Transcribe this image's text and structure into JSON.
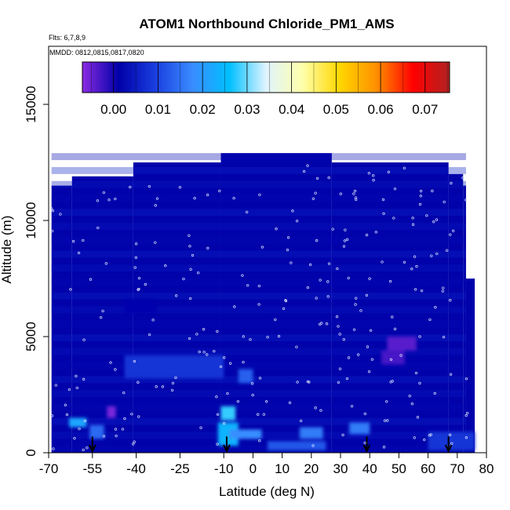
{
  "chart_data": {
    "type": "heatmap",
    "title": "ATOM1 Northbound Chloride_PM1_AMS",
    "subtitle_flights": "Flts: 6,7,8,9",
    "subtitle_dates": "MMDD: 0812,0815,0817,0820",
    "xlabel": "Latitude (deg N)",
    "ylabel": "Altitude (m)",
    "xlim": [
      -70,
      80
    ],
    "ylim": [
      0,
      17500
    ],
    "x_ticks": [
      -70,
      -55,
      -40,
      -25,
      -10,
      0,
      10,
      20,
      30,
      40,
      50,
      60,
      70,
      80
    ],
    "x_tick_labels": [
      "-70",
      "-55",
      "-40",
      "-25",
      "-10",
      "0",
      "10",
      "20",
      "30",
      "40",
      "50",
      "60",
      "70",
      "80"
    ],
    "y_ticks": [
      0,
      5000,
      10000,
      15000
    ],
    "y_tick_labels": [
      "0",
      "5000",
      "10000",
      "15000"
    ],
    "colorbar": {
      "range": [
        -0.007,
        0.0755
      ],
      "ticks": [
        0.0,
        0.01,
        0.02,
        0.03,
        0.04,
        0.05,
        0.06,
        0.07
      ],
      "tick_labels": [
        "0.00",
        "0.01",
        "0.02",
        "0.03",
        "0.04",
        "0.05",
        "0.06",
        "0.07"
      ],
      "colors": [
        "#8a2be2",
        "#0000a8",
        "#1a3fe0",
        "#3a8cff",
        "#00bfff",
        "#dff4ff",
        "#ffffaa",
        "#ffd700",
        "#ff9000",
        "#ff0000",
        "#b22222"
      ]
    },
    "profile_top_altitudes": [
      {
        "lat_range": [
          -69,
          -62
        ],
        "top": 11500
      },
      {
        "lat_range": [
          -62,
          -41
        ],
        "top": 11900
      },
      {
        "lat_range": [
          -41,
          -11
        ],
        "top": 12500
      },
      {
        "lat_range": [
          -11,
          27
        ],
        "top": 12900
      },
      {
        "lat_range": [
          27,
          67
        ],
        "top": 12500
      },
      {
        "lat_range": [
          67,
          72
        ],
        "top": 12000
      },
      {
        "lat_range": [
          72,
          73
        ],
        "top": 11500
      },
      {
        "lat_range": [
          73,
          76
        ],
        "top": 7500
      }
    ],
    "features": [
      {
        "lat": [
          -63,
          -57
        ],
        "alt": [
          1100,
          1500
        ],
        "value": 0.022
      },
      {
        "lat": [
          -56,
          -51
        ],
        "alt": [
          600,
          1200
        ],
        "value": 0.014
      },
      {
        "lat": [
          -50,
          -47
        ],
        "alt": [
          1500,
          2000
        ],
        "value": -0.006
      },
      {
        "lat": [
          -12,
          -5
        ],
        "alt": [
          300,
          1300
        ],
        "value": 0.024
      },
      {
        "lat": [
          -11,
          -6
        ],
        "alt": [
          1400,
          2000
        ],
        "value": 0.028
      },
      {
        "lat": [
          -8,
          3
        ],
        "alt": [
          600,
          1000
        ],
        "value": 0.018
      },
      {
        "lat": [
          -5,
          0
        ],
        "alt": [
          3000,
          3600
        ],
        "value": 0.013
      },
      {
        "lat": [
          16,
          24
        ],
        "alt": [
          600,
          1100
        ],
        "value": 0.016
      },
      {
        "lat": [
          5,
          25
        ],
        "alt": [
          100,
          500
        ],
        "value": 0.012
      },
      {
        "lat": [
          -44,
          -10
        ],
        "alt": [
          3200,
          4200
        ],
        "value": 0.008
      },
      {
        "lat": [
          46,
          56
        ],
        "alt": [
          4400,
          5000
        ],
        "value": -0.004
      },
      {
        "lat": [
          44,
          52
        ],
        "alt": [
          3800,
          4400
        ],
        "value": -0.003
      },
      {
        "lat": [
          -44,
          -33
        ],
        "alt": [
          6000,
          6600
        ],
        "value": 0.002
      },
      {
        "lat": [
          60,
          76
        ],
        "alt": [
          100,
          900
        ],
        "value": 0.008
      },
      {
        "lat": [
          33,
          40
        ],
        "alt": [
          800,
          1300
        ],
        "value": 0.016
      }
    ],
    "flight_track_lats": [
      -55,
      -9,
      39,
      67
    ]
  }
}
